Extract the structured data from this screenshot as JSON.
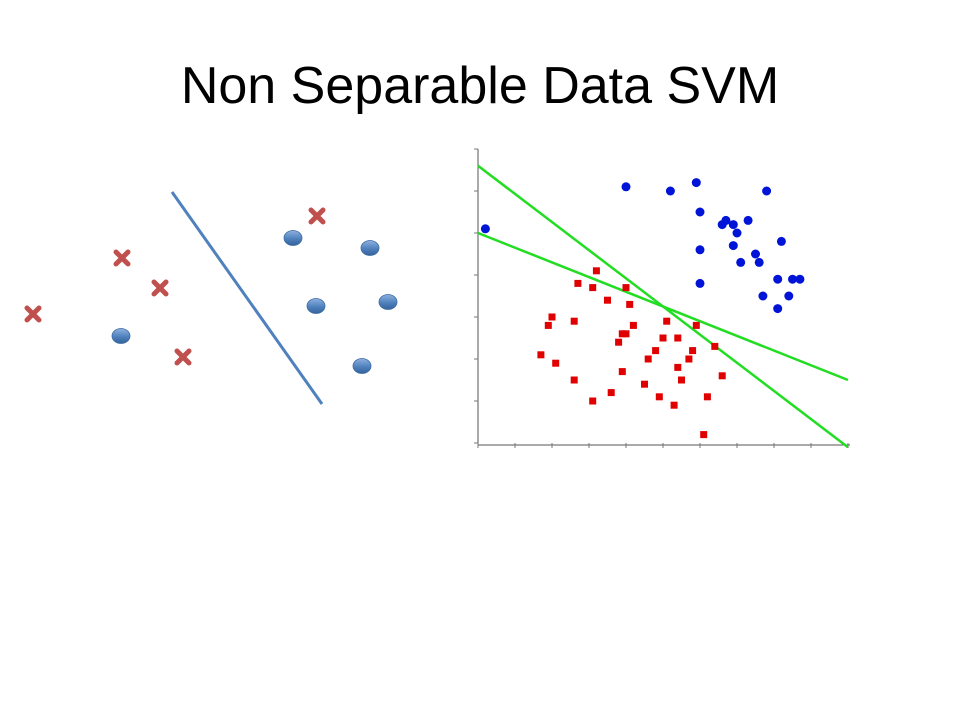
{
  "slide": {
    "title": "Non Separable Data SVM"
  },
  "colors": {
    "cross": "#c0504d",
    "circle": "#4f81bd",
    "separator": "#4f81bd",
    "plot_red": "#e00000",
    "plot_blue": "#0014d8",
    "plot_lines": "#22dd22"
  },
  "left_diagram": {
    "classes": [
      "cross",
      "circle"
    ],
    "separator": "single-line"
  },
  "chart_data": {
    "type": "scatter",
    "title": "",
    "xlabel": "",
    "ylabel": "",
    "xlim": [
      0,
      5
    ],
    "ylim": [
      0,
      7
    ],
    "tick_labels_legible": false,
    "series": [
      {
        "marker": "square",
        "color": "#e00000",
        "points": [
          [
            1.35,
            3.8
          ],
          [
            1.3,
            2.9
          ],
          [
            1.6,
            4.1
          ],
          [
            1.55,
            3.7
          ],
          [
            2.0,
            3.7
          ],
          [
            2.05,
            3.3
          ],
          [
            1.75,
            3.4
          ],
          [
            1.95,
            2.6
          ],
          [
            1.0,
            3.0
          ],
          [
            0.85,
            2.1
          ],
          [
            1.05,
            1.9
          ],
          [
            0.95,
            2.8
          ],
          [
            1.3,
            1.5
          ],
          [
            1.55,
            1.0
          ],
          [
            1.8,
            1.2
          ],
          [
            1.95,
            1.7
          ],
          [
            2.0,
            2.6
          ],
          [
            2.1,
            2.8
          ],
          [
            2.25,
            1.4
          ],
          [
            2.5,
            2.5
          ],
          [
            2.4,
            2.2
          ],
          [
            2.45,
            1.1
          ],
          [
            2.3,
            2.0
          ],
          [
            2.55,
            2.9
          ],
          [
            2.65,
            0.9
          ],
          [
            2.7,
            2.5
          ],
          [
            2.75,
            1.5
          ],
          [
            2.9,
            2.2
          ],
          [
            2.85,
            2.0
          ],
          [
            2.95,
            2.8
          ],
          [
            3.2,
            2.3
          ],
          [
            3.1,
            1.1
          ],
          [
            3.3,
            1.6
          ],
          [
            3.05,
            0.2
          ],
          [
            2.7,
            1.8
          ],
          [
            1.9,
            2.4
          ]
        ]
      },
      {
        "marker": "circle",
        "color": "#0014d8",
        "points": [
          [
            0.1,
            5.1
          ],
          [
            2.0,
            6.1
          ],
          [
            2.6,
            6.0
          ],
          [
            2.95,
            6.2
          ],
          [
            3.0,
            5.5
          ],
          [
            3.45,
            5.2
          ],
          [
            3.65,
            5.3
          ],
          [
            3.9,
            6.0
          ],
          [
            3.35,
            5.3
          ],
          [
            3.8,
            4.3
          ],
          [
            3.3,
            5.2
          ],
          [
            3.45,
            4.7
          ],
          [
            3.0,
            4.6
          ],
          [
            4.1,
            4.8
          ],
          [
            3.55,
            4.3
          ],
          [
            3.5,
            5.0
          ],
          [
            3.75,
            4.5
          ],
          [
            4.05,
            3.9
          ],
          [
            4.25,
            3.9
          ],
          [
            3.85,
            3.5
          ],
          [
            3.0,
            3.8
          ],
          [
            4.2,
            3.5
          ],
          [
            4.35,
            3.9
          ],
          [
            4.05,
            3.2
          ]
        ]
      }
    ],
    "lines": [
      {
        "x": [
          0,
          5
        ],
        "y": [
          6.6,
          -0.1
        ]
      },
      {
        "x": [
          0,
          5
        ],
        "y": [
          5.0,
          1.5
        ]
      }
    ]
  }
}
